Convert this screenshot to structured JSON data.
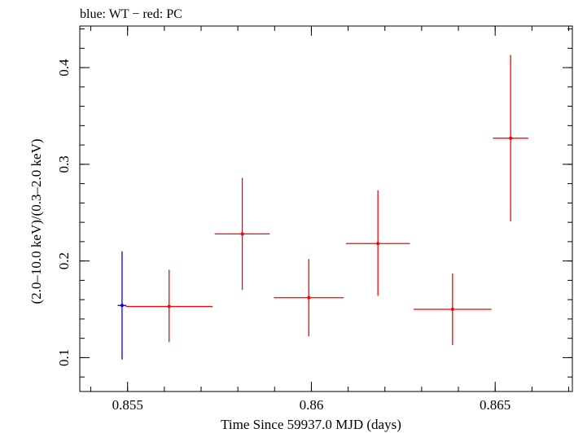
{
  "chart_data": {
    "type": "scatter",
    "title": "blue: WT − red: PC",
    "xlabel": "Time Since 59937.0 MJD (days)",
    "ylabel": "(2.0–10.0 keV)/(0.3–2.0 keV)",
    "xlim": [
      0.8537,
      0.8671
    ],
    "ylim": [
      0.065,
      0.443
    ],
    "x_ticks": [
      {
        "value": 0.855,
        "label": "0.855"
      },
      {
        "value": 0.86,
        "label": "0.86"
      },
      {
        "value": 0.865,
        "label": "0.865"
      }
    ],
    "y_ticks": [
      {
        "value": 0.1,
        "label": "0.1"
      },
      {
        "value": 0.2,
        "label": "0.2"
      },
      {
        "value": 0.3,
        "label": "0.3"
      },
      {
        "value": 0.4,
        "label": "0.4"
      }
    ],
    "x_minor_step": 0.001,
    "y_minor_step": 0.02,
    "series": [
      {
        "name": "WT",
        "color": "#0000ff",
        "points": [
          {
            "x": 0.85485,
            "xerr": 0.00012,
            "y": 0.154,
            "ylo": 0.098,
            "yhi": 0.21
          }
        ]
      },
      {
        "name": "PC",
        "color": "#ff0000",
        "points": [
          {
            "x": 0.85613,
            "xerr": 0.00118,
            "y": 0.153,
            "ylo": 0.116,
            "yhi": 0.191
          },
          {
            "x": 0.85812,
            "xerr": 0.00075,
            "y": 0.228,
            "ylo": 0.17,
            "yhi": 0.286
          },
          {
            "x": 0.85993,
            "xerr": 0.00095,
            "y": 0.162,
            "ylo": 0.122,
            "yhi": 0.202
          },
          {
            "x": 0.86181,
            "xerr": 0.00087,
            "y": 0.218,
            "ylo": 0.164,
            "yhi": 0.273
          },
          {
            "x": 0.86384,
            "xerr": 0.00106,
            "y": 0.15,
            "ylo": 0.113,
            "yhi": 0.187
          },
          {
            "x": 0.86542,
            "xerr": 0.00048,
            "y": 0.327,
            "ylo": 0.241,
            "yhi": 0.413
          }
        ]
      }
    ]
  }
}
